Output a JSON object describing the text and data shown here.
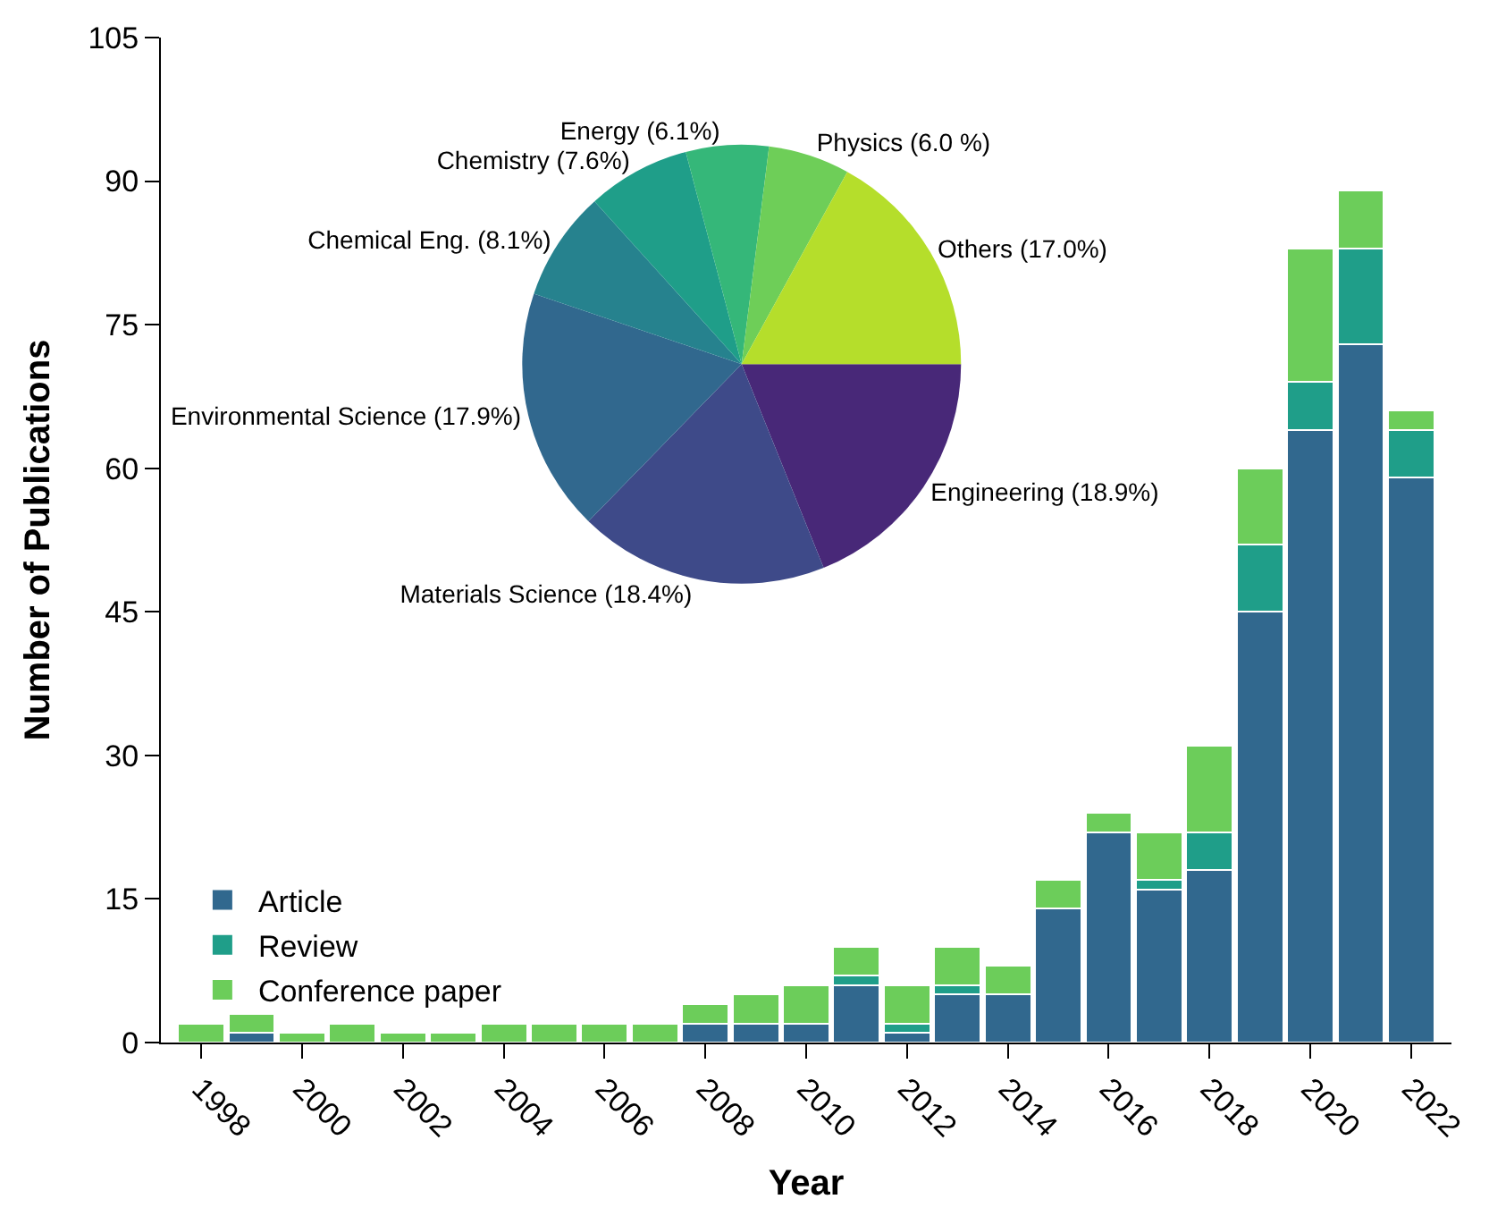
{
  "chart_data": [
    {
      "type": "bar",
      "stacked": true,
      "xlabel": "Year",
      "ylabel": "Number of Publications",
      "x": [
        1998,
        1999,
        2000,
        2001,
        2002,
        2003,
        2004,
        2005,
        2006,
        2007,
        2008,
        2009,
        2010,
        2011,
        2012,
        2013,
        2014,
        2015,
        2016,
        2017,
        2018,
        2019,
        2020,
        2021,
        2022
      ],
      "series": [
        {
          "name": "Article",
          "color": "#31688e",
          "values": [
            0,
            1,
            0,
            0,
            0,
            0,
            0,
            0,
            0,
            0,
            2,
            2,
            2,
            6,
            1,
            5,
            5,
            14,
            22,
            16,
            18,
            45,
            64,
            73,
            59
          ]
        },
        {
          "name": "Review",
          "color": "#1f9e89",
          "values": [
            0,
            0,
            0,
            0,
            0,
            0,
            0,
            0,
            0,
            0,
            0,
            0,
            0,
            1,
            1,
            1,
            0,
            0,
            0,
            1,
            4,
            7,
            5,
            10,
            5
          ]
        },
        {
          "name": "Conference paper",
          "color": "#6ccd5a",
          "values": [
            2,
            2,
            1,
            2,
            1,
            1,
            2,
            2,
            2,
            2,
            2,
            3,
            4,
            3,
            4,
            4,
            3,
            3,
            2,
            5,
            9,
            8,
            14,
            6,
            2
          ]
        }
      ],
      "xlim": [
        1997.2,
        2022.8
      ],
      "xticks": [
        1998,
        2000,
        2002,
        2004,
        2006,
        2008,
        2010,
        2012,
        2014,
        2016,
        2018,
        2020,
        2022
      ],
      "ylim": [
        0,
        105
      ],
      "yticks": [
        0,
        15,
        30,
        45,
        60,
        75,
        90,
        105
      ],
      "legend": "bottom left"
    },
    {
      "type": "pie",
      "categories": [
        "Engineering",
        "Materials Science",
        "Environmental Science",
        "Chemical Eng.",
        "Chemistry",
        "Energy",
        "Physics",
        "Others"
      ],
      "values": [
        18.9,
        18.4,
        17.9,
        8.1,
        7.6,
        6.1,
        6.0,
        17.0
      ],
      "value_labels": [
        "(18.9%)",
        "(18.4%)",
        "(17.9%)",
        "(8.1%)",
        "(7.6%)",
        "(6.1%)",
        "(6.0 %)",
        "(17.0%)"
      ],
      "colors": [
        "#482878",
        "#3e4a89",
        "#31688e",
        "#26828e",
        "#1f9e89",
        "#35b779",
        "#6ece58",
        "#b5de2b"
      ]
    }
  ]
}
